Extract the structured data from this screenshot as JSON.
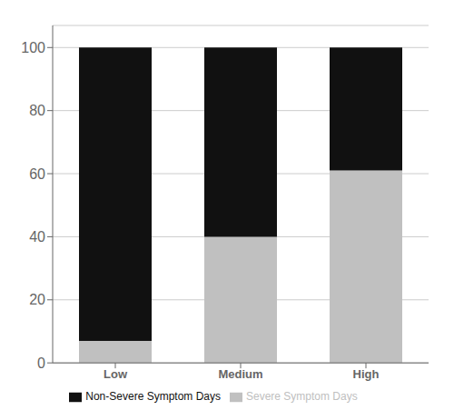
{
  "chart_data": {
    "type": "bar",
    "stacked": true,
    "categories": [
      "Low",
      "Medium",
      "High"
    ],
    "series": [
      {
        "name": "Severe Symptom Days",
        "color": "#c0c0c0",
        "values": [
          7,
          40,
          61
        ]
      },
      {
        "name": "Non-Severe Symptom Days",
        "color": "#111111",
        "values": [
          93,
          60,
          39
        ]
      }
    ],
    "ylim": [
      0,
      107
    ],
    "yticks": [
      0,
      20,
      40,
      60,
      80,
      100
    ],
    "grid": true,
    "legend": "bottom"
  }
}
